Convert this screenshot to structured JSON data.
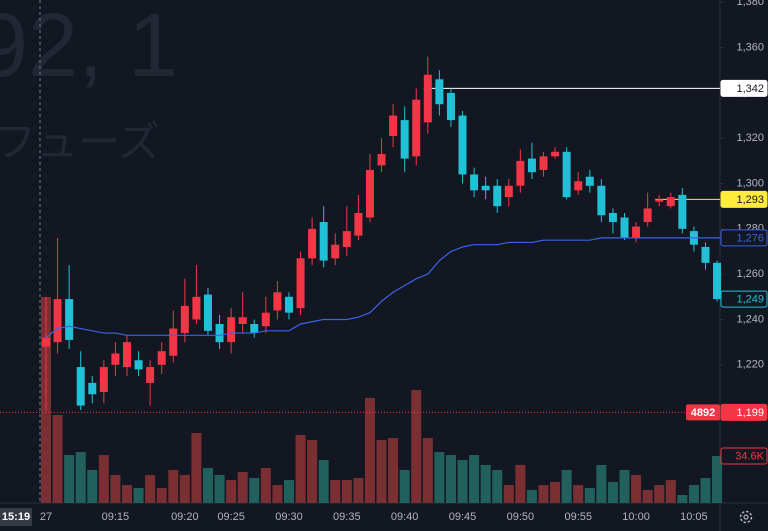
{
  "chart_data": {
    "type": "candlestick",
    "watermark": [
      "92, 1",
      "フューズ"
    ],
    "crosshair_time": "15:19",
    "categories": [
      "27",
      null,
      null,
      null,
      null,
      null,
      "09:15",
      null,
      null,
      null,
      null,
      null,
      "09:20",
      null,
      null,
      null,
      "09:25",
      null,
      null,
      null,
      null,
      "09:30",
      null,
      null,
      null,
      null,
      "09:35",
      null,
      null,
      null,
      null,
      "09:40",
      null,
      null,
      null,
      null,
      "09:45",
      null,
      null,
      null,
      null,
      "09:50",
      null,
      null,
      null,
      null,
      "09:55",
      null,
      null,
      null,
      null,
      "10:00",
      null,
      null,
      null,
      null,
      "10:05",
      null,
      null
    ],
    "open": [
      1228,
      1230,
      1249,
      1219,
      1212,
      1208,
      1220,
      1219,
      1222,
      1212,
      1220,
      1224,
      1234,
      1240,
      1251,
      1238,
      1230,
      1238,
      1238,
      1237,
      1244,
      1250,
      1245,
      1267,
      1283,
      1267,
      1272,
      1277,
      1285,
      1308,
      1321,
      1328,
      1312,
      1327,
      1346,
      1340,
      1330,
      1304,
      1299,
      1299,
      1294,
      1299,
      1311,
      1306,
      1312,
      1314,
      1297,
      1303,
      1299,
      1287,
      1285,
      1276,
      1283,
      1292,
      1290,
      1295,
      1279,
      1272,
      1265
    ],
    "high": [
      1250,
      1276,
      1264,
      1226,
      1215,
      1222,
      1230,
      1233,
      1226,
      1222,
      1230,
      1244,
      1258,
      1264,
      1254,
      1242,
      1245,
      1252,
      1240,
      1250,
      1257,
      1252,
      1270,
      1285,
      1290,
      1278,
      1290,
      1295,
      1313,
      1320,
      1335,
      1334,
      1342,
      1356,
      1350,
      1342,
      1332,
      1307,
      1303,
      1302,
      1302,
      1315,
      1318,
      1314,
      1316,
      1316,
      1305,
      1306,
      1302,
      1289,
      1287,
      1283,
      1296,
      1295,
      1296,
      1298,
      1281,
      1274,
      1266
    ],
    "low": [
      1200,
      1225,
      1227,
      1200,
      1203,
      1203,
      1215,
      1215,
      1215,
      1202,
      1216,
      1221,
      1230,
      1238,
      1233,
      1227,
      1225,
      1234,
      1232,
      1234,
      1240,
      1240,
      1242,
      1264,
      1263,
      1264,
      1268,
      1275,
      1283,
      1305,
      1316,
      1305,
      1308,
      1322,
      1330,
      1325,
      1300,
      1294,
      1293,
      1287,
      1290,
      1296,
      1302,
      1303,
      1311,
      1293,
      1295,
      1296,
      1283,
      1278,
      1275,
      1274,
      1281,
      1290,
      1289,
      1278,
      1270,
      1262,
      1248
    ],
    "close": {
      "values": [
        1232,
        1249,
        1231,
        1202,
        1207,
        1219,
        1225,
        1230,
        1218,
        1219,
        1226,
        1236,
        1246,
        1250,
        1235,
        1230,
        1241,
        1241,
        1234,
        1243,
        1252,
        1243,
        1267,
        1280,
        1266,
        1273,
        1279,
        1287,
        1306,
        1313,
        1330,
        1311,
        1337,
        1348,
        1335,
        1328,
        1304,
        1297,
        1297,
        1290,
        1299,
        1310,
        1305,
        1312,
        1314,
        1294,
        1301,
        1299,
        1286,
        1283,
        1276,
        1281,
        1289,
        1293,
        1294,
        1280,
        1273,
        1265,
        1249
      ],
      "value_labels": [
        null,
        null,
        null,
        null,
        null,
        null,
        null,
        null,
        null,
        null,
        null,
        null,
        null,
        null,
        null,
        null,
        null,
        null,
        null,
        null,
        null,
        null,
        null,
        null,
        null,
        null,
        null,
        null,
        null,
        null,
        null,
        null,
        null,
        null,
        null,
        null,
        null,
        null,
        null,
        null,
        null,
        null,
        null,
        null,
        null,
        null,
        null,
        null,
        null,
        null,
        null,
        null,
        null,
        null,
        null,
        null,
        null,
        null,
        "1,249"
      ]
    },
    "volume": {
      "values": [
        151600,
        64800,
        35300,
        37500,
        24300,
        35300,
        20600,
        13200,
        11000,
        20600,
        11000,
        24300,
        20600,
        51500,
        25800,
        20600,
        16900,
        22800,
        18400,
        25800,
        13200,
        16900,
        50000,
        46400,
        31600,
        16900,
        16900,
        18400,
        77300,
        46400,
        47800,
        24300,
        83200,
        47800,
        37500,
        35300,
        31600,
        35300,
        28000,
        24300,
        13200,
        28000,
        9600,
        13200,
        15500,
        24300,
        13200,
        11000,
        28000,
        15500,
        24300,
        20600,
        9600,
        13200,
        16900,
        5900,
        13200,
        18400,
        34600
      ],
      "value_labels": [
        null,
        null,
        null,
        null,
        null,
        null,
        null,
        null,
        null,
        null,
        null,
        null,
        null,
        null,
        null,
        null,
        null,
        null,
        null,
        null,
        null,
        null,
        null,
        null,
        null,
        null,
        null,
        null,
        null,
        null,
        null,
        null,
        null,
        null,
        null,
        null,
        null,
        null,
        null,
        null,
        null,
        null,
        null,
        null,
        null,
        null,
        null,
        null,
        null,
        null,
        null,
        null,
        null,
        null,
        null,
        null,
        null,
        null,
        "34.6K"
      ]
    },
    "vwap": {
      "color": "#3b63e8",
      "values": [
        1232,
        1236,
        1237,
        1236,
        1235,
        1234,
        1234,
        1233,
        1233,
        1233,
        1233,
        1233,
        1233,
        1233,
        1233,
        1233,
        1234,
        1234,
        1234,
        1235,
        1235,
        1235,
        1238,
        1239,
        1240,
        1240,
        1240,
        1241,
        1243,
        1248,
        1252,
        1255,
        1258,
        1260,
        1266,
        1270,
        1272,
        1273,
        1273,
        1273,
        1274,
        1274,
        1274,
        1275,
        1275,
        1275,
        1275,
        1275,
        1276,
        1276,
        1276,
        1276,
        1276,
        1276,
        1276,
        1276,
        1276,
        1276,
        1276
      ],
      "value_labels": [
        null,
        null,
        null,
        null,
        null,
        null,
        null,
        null,
        null,
        null,
        null,
        null,
        null,
        null,
        null,
        null,
        null,
        null,
        null,
        null,
        null,
        null,
        null,
        null,
        null,
        null,
        null,
        null,
        null,
        null,
        null,
        null,
        null,
        null,
        null,
        null,
        null,
        null,
        null,
        null,
        null,
        null,
        null,
        null,
        null,
        null,
        null,
        null,
        null,
        null,
        null,
        null,
        null,
        null,
        null,
        null,
        null,
        null,
        "1,276"
      ]
    },
    "up_color": "#f23645",
    "down_color": "#22c0d6",
    "volume_up_color": "#7a2f33",
    "volume_down_color": "#22605e",
    "price_lines": [
      {
        "value": 1342,
        "label": "1,342",
        "color": "#ffffff",
        "from": 33,
        "style": "solid"
      },
      {
        "value": 1293,
        "label": "1,293",
        "color": "#ffeb3b",
        "from": 53,
        "style": "solid"
      },
      {
        "value": 1199,
        "label": "1,199",
        "tag": "4892",
        "color": "#f23645",
        "from": 0,
        "style": "dotted"
      }
    ],
    "ylim": [
      1159,
      1381
    ],
    "yticks": [
      {
        "value": 1220,
        "label": "1,220"
      },
      {
        "value": 1240,
        "label": "1,240"
      },
      {
        "value": 1260,
        "label": "1,260"
      },
      {
        "value": 1280,
        "label": "1,280"
      },
      {
        "value": 1300,
        "label": "1,300"
      },
      {
        "value": 1320,
        "label": "1,320"
      },
      {
        "value": 1340,
        "label": "1,340"
      },
      {
        "value": 1360,
        "label": "1,360"
      },
      {
        "value": 1380,
        "label": "1,380"
      }
    ],
    "grid": false
  }
}
